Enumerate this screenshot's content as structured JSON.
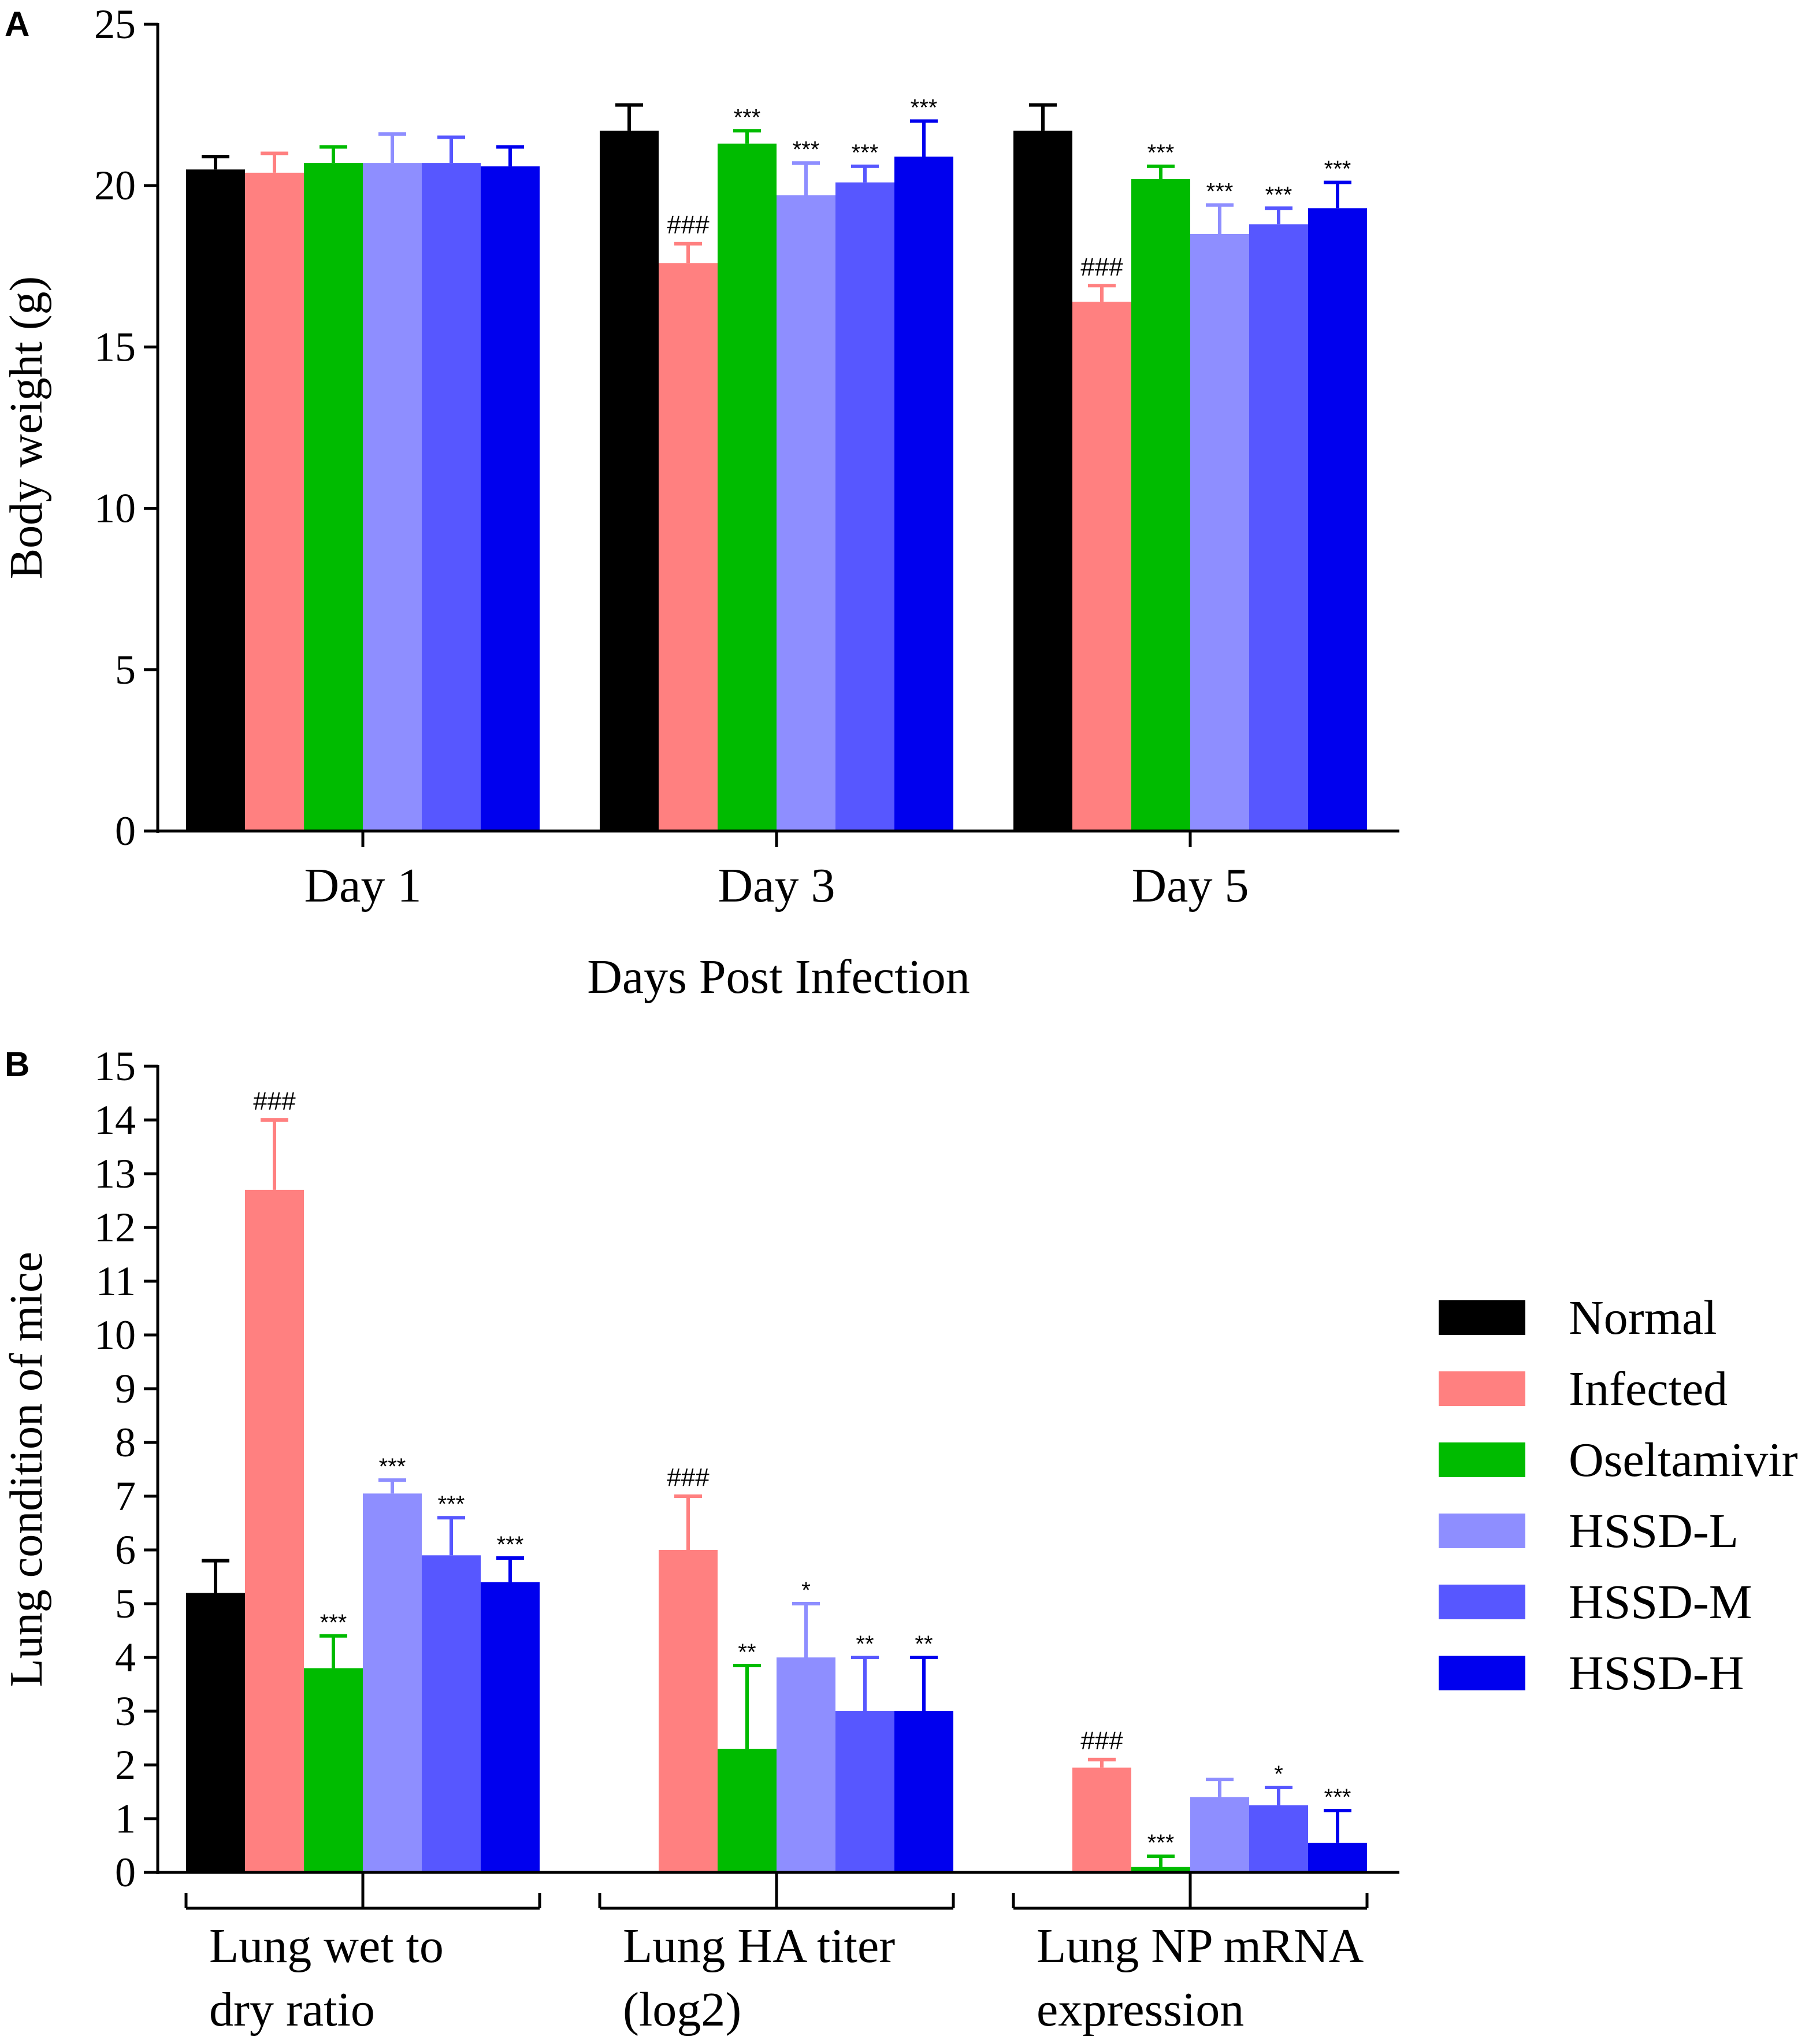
{
  "colors": {
    "Normal": "#000000",
    "Infected": "#ff8080",
    "Oseltamivir": "#00bb00",
    "HSSD-L": "#8e8eff",
    "HSSD-M": "#5757ff",
    "HSSD-H": "#0000ee"
  },
  "legend": [
    "Normal",
    "Infected",
    "Oseltamivir",
    "HSSD-L",
    "HSSD-M",
    "HSSD-H"
  ],
  "chart_data": [
    {
      "panel": "A",
      "type": "bar",
      "ylabel": "Body weight (g)",
      "xlabel": "Days Post Infection",
      "ylim": [
        0,
        25
      ],
      "yticks": [
        0,
        5,
        10,
        15,
        20,
        25
      ],
      "categories": [
        "Day 1",
        "Day 3",
        "Day 5"
      ],
      "series": [
        {
          "name": "Normal",
          "values": [
            20.5,
            21.7,
            21.7
          ],
          "errors": [
            0.4,
            0.8,
            0.8
          ],
          "annotations": [
            "",
            "",
            ""
          ]
        },
        {
          "name": "Infected",
          "values": [
            20.4,
            17.6,
            16.4
          ],
          "errors": [
            0.6,
            0.6,
            0.5
          ],
          "annotations": [
            "",
            "###",
            "###"
          ]
        },
        {
          "name": "Oseltamivir",
          "values": [
            20.7,
            21.3,
            20.2
          ],
          "errors": [
            0.5,
            0.4,
            0.4
          ],
          "annotations": [
            "",
            "***",
            "***"
          ]
        },
        {
          "name": "HSSD-L",
          "values": [
            20.7,
            19.7,
            18.5
          ],
          "errors": [
            0.9,
            1.0,
            0.9
          ],
          "annotations": [
            "",
            "***",
            "***"
          ]
        },
        {
          "name": "HSSD-M",
          "values": [
            20.7,
            20.1,
            18.8
          ],
          "errors": [
            0.8,
            0.5,
            0.5
          ],
          "annotations": [
            "",
            "***",
            "***"
          ]
        },
        {
          "name": "HSSD-H",
          "values": [
            20.6,
            20.9,
            19.3
          ],
          "errors": [
            0.6,
            1.1,
            0.8
          ],
          "annotations": [
            "",
            "***",
            "***"
          ]
        }
      ]
    },
    {
      "panel": "B",
      "type": "bar",
      "ylabel": "Lung condition of mice",
      "ylim": [
        0,
        15
      ],
      "yticks": [
        0,
        1,
        2,
        3,
        4,
        5,
        6,
        7,
        8,
        9,
        10,
        11,
        12,
        13,
        14,
        15
      ],
      "categories": [
        [
          "Lung wet to",
          "dry ratio"
        ],
        [
          "Lung HA titer",
          "(log2)"
        ],
        [
          "Lung NP mRNA",
          "expression"
        ]
      ],
      "series": [
        {
          "name": "Normal",
          "values": [
            5.2,
            null,
            null
          ],
          "errors": [
            0.6,
            null,
            null
          ],
          "annotations": [
            "",
            "",
            ""
          ]
        },
        {
          "name": "Infected",
          "values": [
            12.7,
            6.0,
            1.95
          ],
          "errors": [
            1.3,
            1.0,
            0.15
          ],
          "annotations": [
            "###",
            "###",
            "###"
          ]
        },
        {
          "name": "Oseltamivir",
          "values": [
            3.8,
            2.3,
            0.1
          ],
          "errors": [
            0.6,
            1.55,
            0.2
          ],
          "annotations": [
            "***",
            "**",
            "***"
          ]
        },
        {
          "name": "HSSD-L",
          "values": [
            7.05,
            4.0,
            1.4
          ],
          "errors": [
            0.25,
            1.0,
            0.33
          ],
          "annotations": [
            "***",
            "*",
            ""
          ]
        },
        {
          "name": "HSSD-M",
          "values": [
            5.9,
            3.0,
            1.25
          ],
          "errors": [
            0.7,
            1.0,
            0.33
          ],
          "annotations": [
            "***",
            "**",
            "*"
          ]
        },
        {
          "name": "HSSD-H",
          "values": [
            5.4,
            3.0,
            0.55
          ],
          "errors": [
            0.45,
            1.0,
            0.6
          ],
          "annotations": [
            "***",
            "**",
            "***"
          ]
        }
      ]
    }
  ],
  "panel_labels": [
    "A",
    "B"
  ]
}
